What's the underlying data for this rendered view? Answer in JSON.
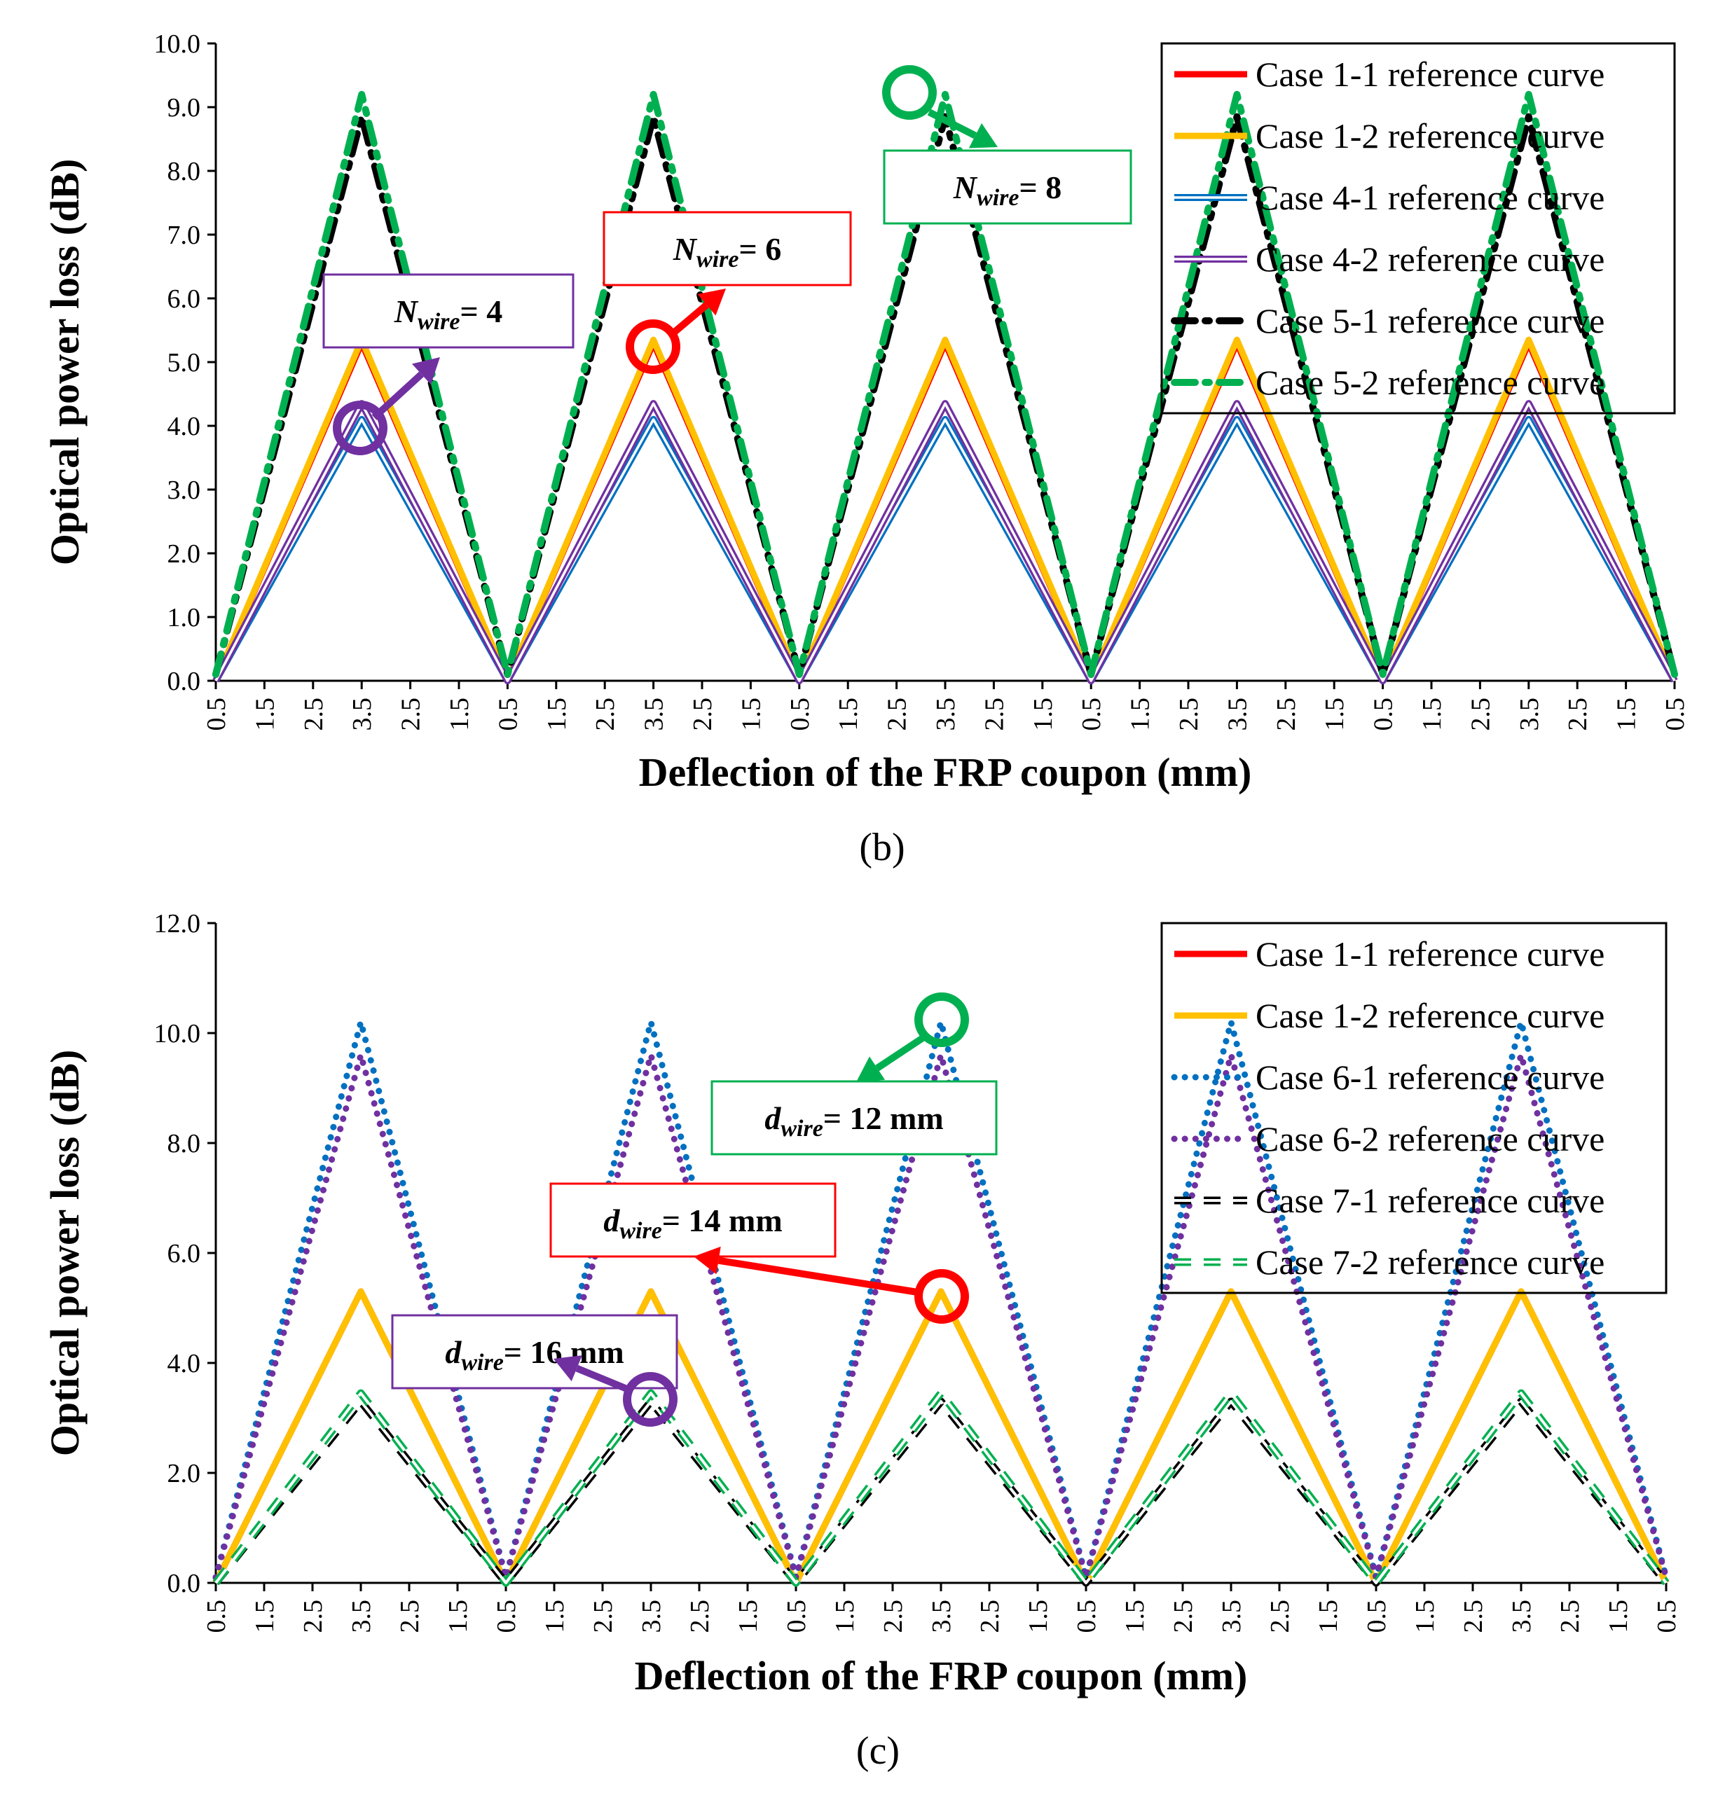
{
  "colors": {
    "red": "#FF0000",
    "yellow": "#FFC000",
    "blue": "#0070C0",
    "purple": "#7030A0",
    "black": "#000000",
    "green": "#00B050"
  },
  "chart_data": [
    {
      "type": "line",
      "panel_label": "(b)",
      "xlabel": "Deflection of the FRP coupon (mm)",
      "ylabel": "Optical power loss (dB)",
      "ylim": [
        0,
        10
      ],
      "y_ticks": [
        "0.0",
        "1.0",
        "2.0",
        "3.0",
        "4.0",
        "5.0",
        "6.0",
        "7.0",
        "8.0",
        "9.0",
        "10.0"
      ],
      "x_ticks": [
        "0.5",
        "1.5",
        "2.5",
        "3.5",
        "2.5",
        "1.5",
        "0.5",
        "1.5",
        "2.5",
        "3.5",
        "2.5",
        "1.5",
        "0.5",
        "1.5",
        "2.5",
        "3.5",
        "2.5",
        "1.5",
        "0.5",
        "1.5",
        "2.5",
        "3.5",
        "2.5",
        "1.5",
        "0.5",
        "1.5",
        "2.5",
        "3.5",
        "2.5",
        "1.5",
        "0.5"
      ],
      "cycles": 5,
      "deflection_path": [
        0.5,
        3.5,
        0.5
      ],
      "series": [
        {
          "name": "Case 1-1 reference curve",
          "color": "red",
          "style": "solid",
          "min": 0.0,
          "peak": 5.3
        },
        {
          "name": "Case 1-2 reference curve",
          "color": "yellow",
          "style": "solid",
          "min": 0.0,
          "peak": 5.35
        },
        {
          "name": "Case 4-1 reference curve",
          "color": "blue",
          "style": "double",
          "min": 0.0,
          "peak": 4.1
        },
        {
          "name": "Case 4-2 reference curve",
          "color": "purple",
          "style": "double",
          "min": 0.0,
          "peak": 4.35
        },
        {
          "name": "Case 5-1 reference curve",
          "color": "black",
          "style": "dashdot",
          "min": 0.1,
          "peak": 8.85
        },
        {
          "name": "Case 5-2 reference curve",
          "color": "green",
          "style": "dashdot",
          "min": 0.1,
          "peak": 9.2
        }
      ],
      "annotations": [
        {
          "var": "N",
          "sub": "wire",
          "text": "= 4",
          "color": "purple"
        },
        {
          "var": "N",
          "sub": "wire",
          "text": "= 6",
          "color": "red"
        },
        {
          "var": "N",
          "sub": "wire",
          "text": "= 8",
          "color": "green"
        }
      ]
    },
    {
      "type": "line",
      "panel_label": "(c)",
      "xlabel": "Deflection of the FRP coupon (mm)",
      "ylabel": "Optical power loss (dB)",
      "ylim": [
        0,
        12
      ],
      "y_ticks": [
        "0.0",
        "2.0",
        "4.0",
        "6.0",
        "8.0",
        "10.0",
        "12.0"
      ],
      "x_ticks": [
        "0.5",
        "1.5",
        "2.5",
        "3.5",
        "2.5",
        "1.5",
        "0.5",
        "1.5",
        "2.5",
        "3.5",
        "2.5",
        "1.5",
        "0.5",
        "1.5",
        "2.5",
        "3.5",
        "2.5",
        "1.5",
        "0.5",
        "1.5",
        "2.5",
        "3.5",
        "2.5",
        "1.5",
        "0.5",
        "1.5",
        "2.5",
        "3.5",
        "2.5",
        "1.5",
        "0.5"
      ],
      "cycles": 5,
      "deflection_path": [
        0.5,
        3.5,
        0.5
      ],
      "series": [
        {
          "name": "Case 1-1 reference curve",
          "color": "red",
          "style": "solid",
          "min": 0.0,
          "peak": 5.3
        },
        {
          "name": "Case 1-2 reference curve",
          "color": "yellow",
          "style": "solid",
          "min": 0.0,
          "peak": 5.3
        },
        {
          "name": "Case 6-1 reference curve",
          "color": "blue",
          "style": "dotted",
          "min": 0.1,
          "peak": 10.2
        },
        {
          "name": "Case 6-2 reference curve",
          "color": "purple",
          "style": "dotted",
          "min": 0.1,
          "peak": 9.6
        },
        {
          "name": "Case 7-1 reference curve",
          "color": "black",
          "style": "dashed-hollow",
          "min": 0.0,
          "peak": 3.3
        },
        {
          "name": "Case 7-2 reference curve",
          "color": "green",
          "style": "dashed-hollow",
          "min": 0.0,
          "peak": 3.45
        }
      ],
      "annotations": [
        {
          "var": "d",
          "sub": "wire",
          "text": "= 12 mm",
          "color": "green"
        },
        {
          "var": "d",
          "sub": "wire",
          "text": "= 14 mm",
          "color": "red"
        },
        {
          "var": "d",
          "sub": "wire",
          "text": "= 16 mm",
          "color": "purple"
        }
      ]
    }
  ]
}
